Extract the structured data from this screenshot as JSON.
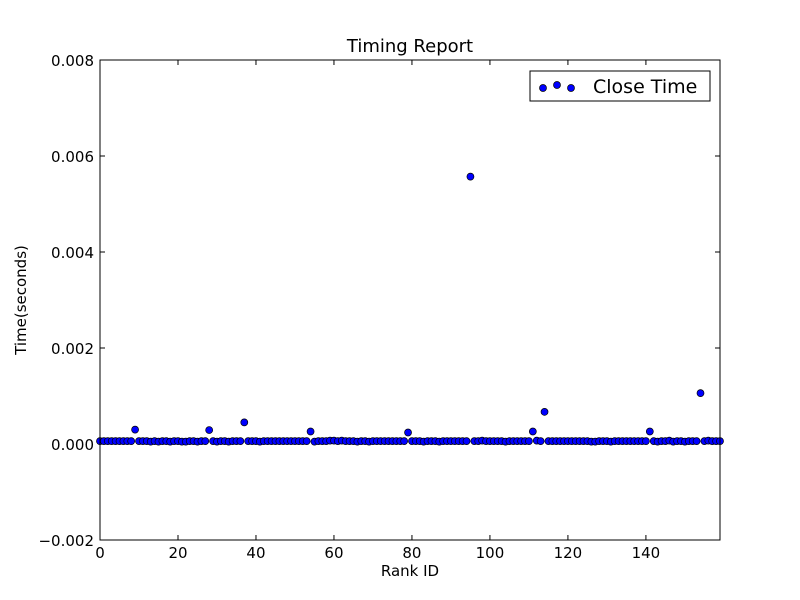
{
  "chart_data": {
    "type": "scatter",
    "title": "Timing Report",
    "xlabel": "Rank ID",
    "ylabel": "Time(seconds)",
    "xlim": [
      0,
      159
    ],
    "ylim": [
      -0.002,
      0.008
    ],
    "x_ticks": [
      "0",
      "20",
      "40",
      "60",
      "80",
      "100",
      "120",
      "140"
    ],
    "y_ticks": [
      "−0.002",
      "0.000",
      "0.002",
      "0.004",
      "0.006",
      "0.008"
    ],
    "legend": {
      "label": "Close Time",
      "location": "upper right"
    },
    "grid": false,
    "marker_color": "#0000ff",
    "series": [
      {
        "name": "Close Time",
        "x": [
          0,
          1,
          2,
          3,
          4,
          5,
          6,
          7,
          8,
          9,
          10,
          11,
          12,
          13,
          14,
          15,
          16,
          17,
          18,
          19,
          20,
          21,
          22,
          23,
          24,
          25,
          26,
          27,
          28,
          29,
          30,
          31,
          32,
          33,
          34,
          35,
          36,
          37,
          38,
          39,
          40,
          41,
          42,
          43,
          44,
          45,
          46,
          47,
          48,
          49,
          50,
          51,
          52,
          53,
          54,
          55,
          56,
          57,
          58,
          59,
          60,
          61,
          62,
          63,
          64,
          65,
          66,
          67,
          68,
          69,
          70,
          71,
          72,
          73,
          74,
          75,
          76,
          77,
          78,
          79,
          80,
          81,
          82,
          83,
          84,
          85,
          86,
          87,
          88,
          89,
          90,
          91,
          92,
          93,
          94,
          95,
          96,
          97,
          98,
          99,
          100,
          101,
          102,
          103,
          104,
          105,
          106,
          107,
          108,
          109,
          110,
          111,
          112,
          113,
          114,
          115,
          116,
          117,
          118,
          119,
          120,
          121,
          122,
          123,
          124,
          125,
          126,
          127,
          128,
          129,
          130,
          131,
          132,
          133,
          134,
          135,
          136,
          137,
          138,
          139,
          140,
          141,
          142,
          143,
          144,
          145,
          146,
          147,
          148,
          149,
          150,
          151,
          152,
          153,
          154,
          155,
          156,
          157,
          158,
          159
        ],
        "y": [
          6e-05,
          6e-05,
          6e-05,
          6e-05,
          6e-05,
          6e-05,
          6e-05,
          6e-05,
          6e-05,
          0.0003,
          6e-05,
          6e-05,
          6e-05,
          5e-05,
          6e-05,
          5e-05,
          6e-05,
          6e-05,
          5e-05,
          6e-05,
          6e-05,
          5e-05,
          5e-05,
          6e-05,
          6e-05,
          5e-05,
          6e-05,
          6e-05,
          0.00029,
          6e-05,
          5e-05,
          6e-05,
          6e-05,
          5e-05,
          6e-05,
          6e-05,
          6e-05,
          0.00045,
          6e-05,
          6e-05,
          6e-05,
          5e-05,
          6e-05,
          6e-05,
          6e-05,
          6e-05,
          6e-05,
          6e-05,
          6e-05,
          6e-05,
          6e-05,
          6e-05,
          6e-05,
          6e-05,
          0.00026,
          5e-05,
          6e-05,
          6e-05,
          6e-05,
          7e-05,
          7e-05,
          6e-05,
          7e-05,
          6e-05,
          6e-05,
          6e-05,
          5e-05,
          6e-05,
          6e-05,
          5e-05,
          6e-05,
          6e-05,
          6e-05,
          6e-05,
          6e-05,
          6e-05,
          6e-05,
          6e-05,
          6e-05,
          0.00024,
          6e-05,
          6e-05,
          6e-05,
          5e-05,
          6e-05,
          6e-05,
          6e-05,
          5e-05,
          6e-05,
          6e-05,
          6e-05,
          6e-05,
          6e-05,
          6e-05,
          6e-05,
          0.00557,
          6e-05,
          6e-05,
          7e-05,
          6e-05,
          6e-05,
          6e-05,
          6e-05,
          6e-05,
          5e-05,
          6e-05,
          6e-05,
          6e-05,
          6e-05,
          6e-05,
          6e-05,
          0.00026,
          7e-05,
          6e-05,
          0.00067,
          6e-05,
          6e-05,
          6e-05,
          6e-05,
          6e-05,
          6e-05,
          6e-05,
          6e-05,
          6e-05,
          6e-05,
          6e-05,
          5e-05,
          5e-05,
          6e-05,
          6e-05,
          6e-05,
          5e-05,
          6e-05,
          6e-05,
          6e-05,
          6e-05,
          6e-05,
          6e-05,
          6e-05,
          6e-05,
          6e-05,
          0.00026,
          6e-05,
          5e-05,
          6e-05,
          6e-05,
          7e-05,
          5e-05,
          6e-05,
          6e-05,
          5e-05,
          6e-05,
          6e-05,
          6e-05,
          0.00106,
          6e-05,
          7e-05,
          6e-05,
          6e-05,
          6e-05
        ]
      }
    ]
  }
}
